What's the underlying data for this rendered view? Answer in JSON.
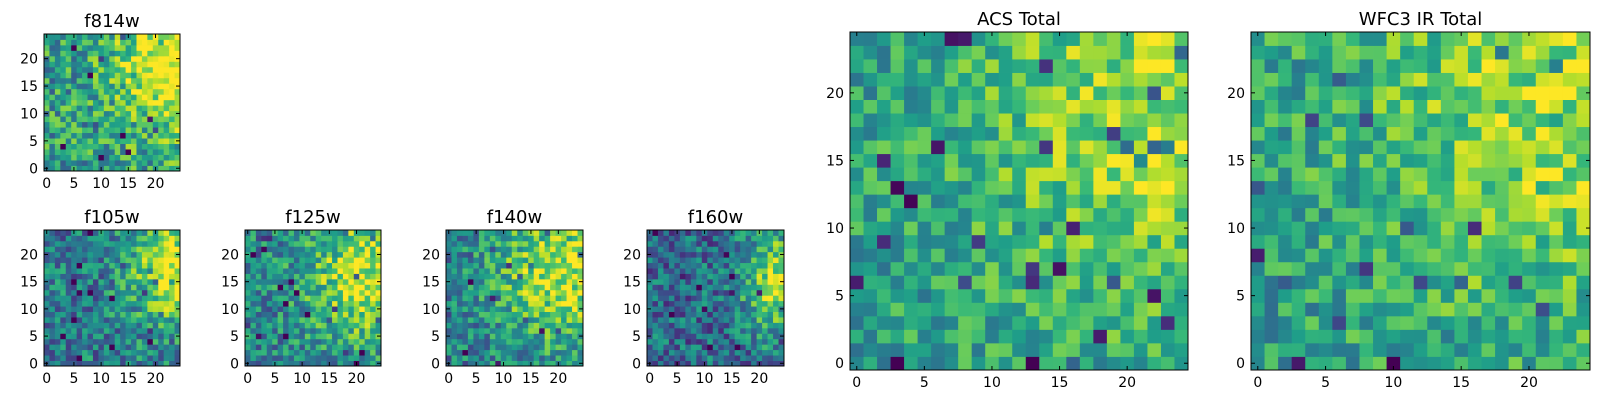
{
  "figure": {
    "colormap": "viridis",
    "colormap_stops": [
      "#440154",
      "#482878",
      "#3e4989",
      "#31688e",
      "#26828e",
      "#1f9e89",
      "#35b779",
      "#6ece58",
      "#b5de2b",
      "#fde725"
    ]
  },
  "chart_data": [
    {
      "type": "heatmap",
      "title": "f814w",
      "xticks": [
        "0",
        "5",
        "10",
        "15",
        "20"
      ],
      "yticks": [
        "0",
        "5",
        "10",
        "15",
        "20"
      ],
      "xlim": [
        0,
        24
      ],
      "ylim": [
        0,
        24
      ],
      "grid_size": [
        25,
        25
      ],
      "trend": "brightest toward top-right corner"
    },
    {
      "type": "heatmap",
      "title": "f105w",
      "xticks": [
        "0",
        "5",
        "10",
        "15",
        "20"
      ],
      "yticks": [
        "0",
        "5",
        "10",
        "15",
        "20"
      ],
      "xlim": [
        0,
        24
      ],
      "ylim": [
        0,
        24
      ],
      "grid_size": [
        25,
        25
      ],
      "trend": "brightest toward upper-right edge"
    },
    {
      "type": "heatmap",
      "title": "f125w",
      "xticks": [
        "0",
        "5",
        "10",
        "15",
        "20"
      ],
      "yticks": [
        "0",
        "5",
        "10",
        "15",
        "20"
      ],
      "xlim": [
        0,
        24
      ],
      "ylim": [
        0,
        24
      ],
      "grid_size": [
        25,
        25
      ],
      "trend": "brightest toward upper-right"
    },
    {
      "type": "heatmap",
      "title": "f140w",
      "xticks": [
        "0",
        "5",
        "10",
        "15",
        "20"
      ],
      "yticks": [
        "0",
        "5",
        "10",
        "15",
        "20"
      ],
      "xlim": [
        0,
        24
      ],
      "ylim": [
        0,
        24
      ],
      "grid_size": [
        25,
        25
      ],
      "trend": "brightest toward upper-right"
    },
    {
      "type": "heatmap",
      "title": "f160w",
      "xticks": [
        "0",
        "5",
        "10",
        "15",
        "20"
      ],
      "yticks": [
        "0",
        "5",
        "10",
        "15",
        "20"
      ],
      "xlim": [
        0,
        24
      ],
      "ylim": [
        0,
        24
      ],
      "grid_size": [
        25,
        25
      ],
      "trend": "brightest at right edge, mid-upper"
    },
    {
      "type": "heatmap",
      "title": "ACS Total",
      "xticks": [
        "0",
        "5",
        "10",
        "15",
        "20"
      ],
      "yticks": [
        "0",
        "5",
        "10",
        "15",
        "20"
      ],
      "xlim": [
        0,
        24
      ],
      "ylim": [
        0,
        24
      ],
      "grid_size": [
        25,
        25
      ],
      "trend": "brightest toward upper-right"
    },
    {
      "type": "heatmap",
      "title": "WFC3 IR Total",
      "xticks": [
        "0",
        "5",
        "10",
        "15",
        "20"
      ],
      "yticks": [
        "0",
        "5",
        "10",
        "15",
        "20"
      ],
      "xlim": [
        0,
        24
      ],
      "ylim": [
        0,
        24
      ],
      "grid_size": [
        25,
        25
      ],
      "trend": "brightest toward upper-right"
    }
  ]
}
